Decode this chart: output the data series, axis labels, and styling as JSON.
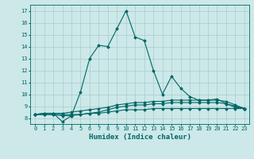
{
  "title": "",
  "xlabel": "Humidex (Indice chaleur)",
  "ylabel": "",
  "background_color": "#cce8e8",
  "grid_color": "#aacccc",
  "line_color": "#006666",
  "xlim": [
    -0.5,
    23.5
  ],
  "ylim": [
    7.5,
    17.5
  ],
  "xticks": [
    0,
    1,
    2,
    3,
    4,
    5,
    6,
    7,
    8,
    9,
    10,
    11,
    12,
    13,
    14,
    15,
    16,
    17,
    18,
    19,
    20,
    21,
    22,
    23
  ],
  "yticks": [
    8,
    9,
    10,
    11,
    12,
    13,
    14,
    15,
    16,
    17
  ],
  "lines": [
    {
      "x": [
        0,
        1,
        2,
        3,
        4,
        5,
        6,
        7,
        8,
        9,
        10,
        11,
        12,
        13,
        14,
        15,
        16,
        17,
        18,
        19,
        20,
        21,
        22,
        23
      ],
      "y": [
        8.3,
        8.4,
        8.4,
        7.7,
        8.2,
        10.2,
        13.0,
        14.1,
        14.0,
        15.5,
        17.0,
        14.8,
        14.5,
        12.0,
        10.0,
        11.5,
        10.5,
        9.8,
        9.5,
        9.5,
        9.6,
        9.2,
        8.9,
        8.8
      ]
    },
    {
      "x": [
        0,
        1,
        2,
        3,
        4,
        5,
        6,
        7,
        8,
        9,
        10,
        11,
        12,
        13,
        14,
        15,
        16,
        17,
        18,
        19,
        20,
        21,
        22,
        23
      ],
      "y": [
        8.3,
        8.4,
        8.4,
        8.4,
        8.5,
        8.6,
        8.7,
        8.8,
        8.9,
        9.1,
        9.2,
        9.3,
        9.3,
        9.4,
        9.4,
        9.5,
        9.5,
        9.5,
        9.5,
        9.5,
        9.5,
        9.4,
        9.1,
        8.8
      ]
    },
    {
      "x": [
        0,
        1,
        2,
        3,
        4,
        5,
        6,
        7,
        8,
        9,
        10,
        11,
        12,
        13,
        14,
        15,
        16,
        17,
        18,
        19,
        20,
        21,
        22,
        23
      ],
      "y": [
        8.3,
        8.3,
        8.3,
        8.3,
        8.3,
        8.3,
        8.4,
        8.4,
        8.5,
        8.6,
        8.7,
        8.7,
        8.7,
        8.8,
        8.8,
        8.8,
        8.8,
        8.8,
        8.8,
        8.8,
        8.8,
        8.8,
        8.8,
        8.8
      ]
    },
    {
      "x": [
        0,
        1,
        2,
        3,
        4,
        5,
        6,
        7,
        8,
        9,
        10,
        11,
        12,
        13,
        14,
        15,
        16,
        17,
        18,
        19,
        20,
        21,
        22,
        23
      ],
      "y": [
        8.3,
        8.3,
        8.3,
        8.2,
        8.2,
        8.3,
        8.4,
        8.5,
        8.7,
        8.9,
        9.0,
        9.1,
        9.1,
        9.2,
        9.2,
        9.3,
        9.3,
        9.3,
        9.3,
        9.3,
        9.3,
        9.2,
        9.0,
        8.8
      ]
    }
  ],
  "marker": "D",
  "markersize": 1.5,
  "linewidth": 0.8,
  "tick_fontsize": 5,
  "label_fontsize": 6.5
}
